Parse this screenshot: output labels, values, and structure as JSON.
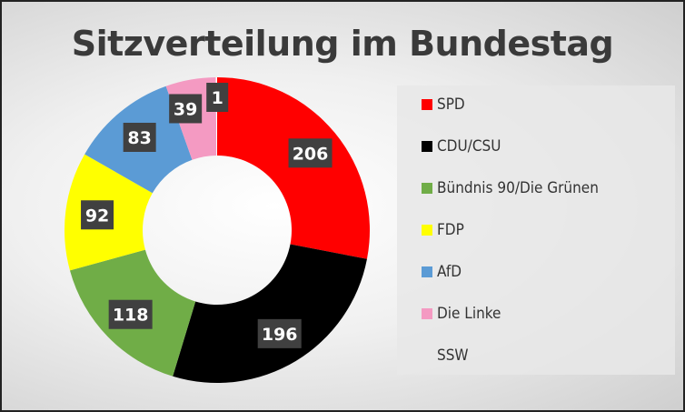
{
  "chart_data": {
    "type": "pie",
    "variant": "donut",
    "title": "Sitzverteilung im Bundestag",
    "legend_position": "right",
    "categories": [
      "SPD",
      "CDU/CSU",
      "Bündnis 90/Die Grünen",
      "FDP",
      "AfD",
      "Die Linke",
      "SSW"
    ],
    "values": [
      206,
      196,
      118,
      92,
      83,
      39,
      1
    ],
    "colors": [
      "#ff0000",
      "#000000",
      "#70ad47",
      "#ffff00",
      "#5b9bd5",
      "#f49ac2",
      "#ffffff"
    ],
    "data_labels": [
      "206",
      "196",
      "118",
      "92",
      "83",
      "39",
      "1"
    ]
  }
}
